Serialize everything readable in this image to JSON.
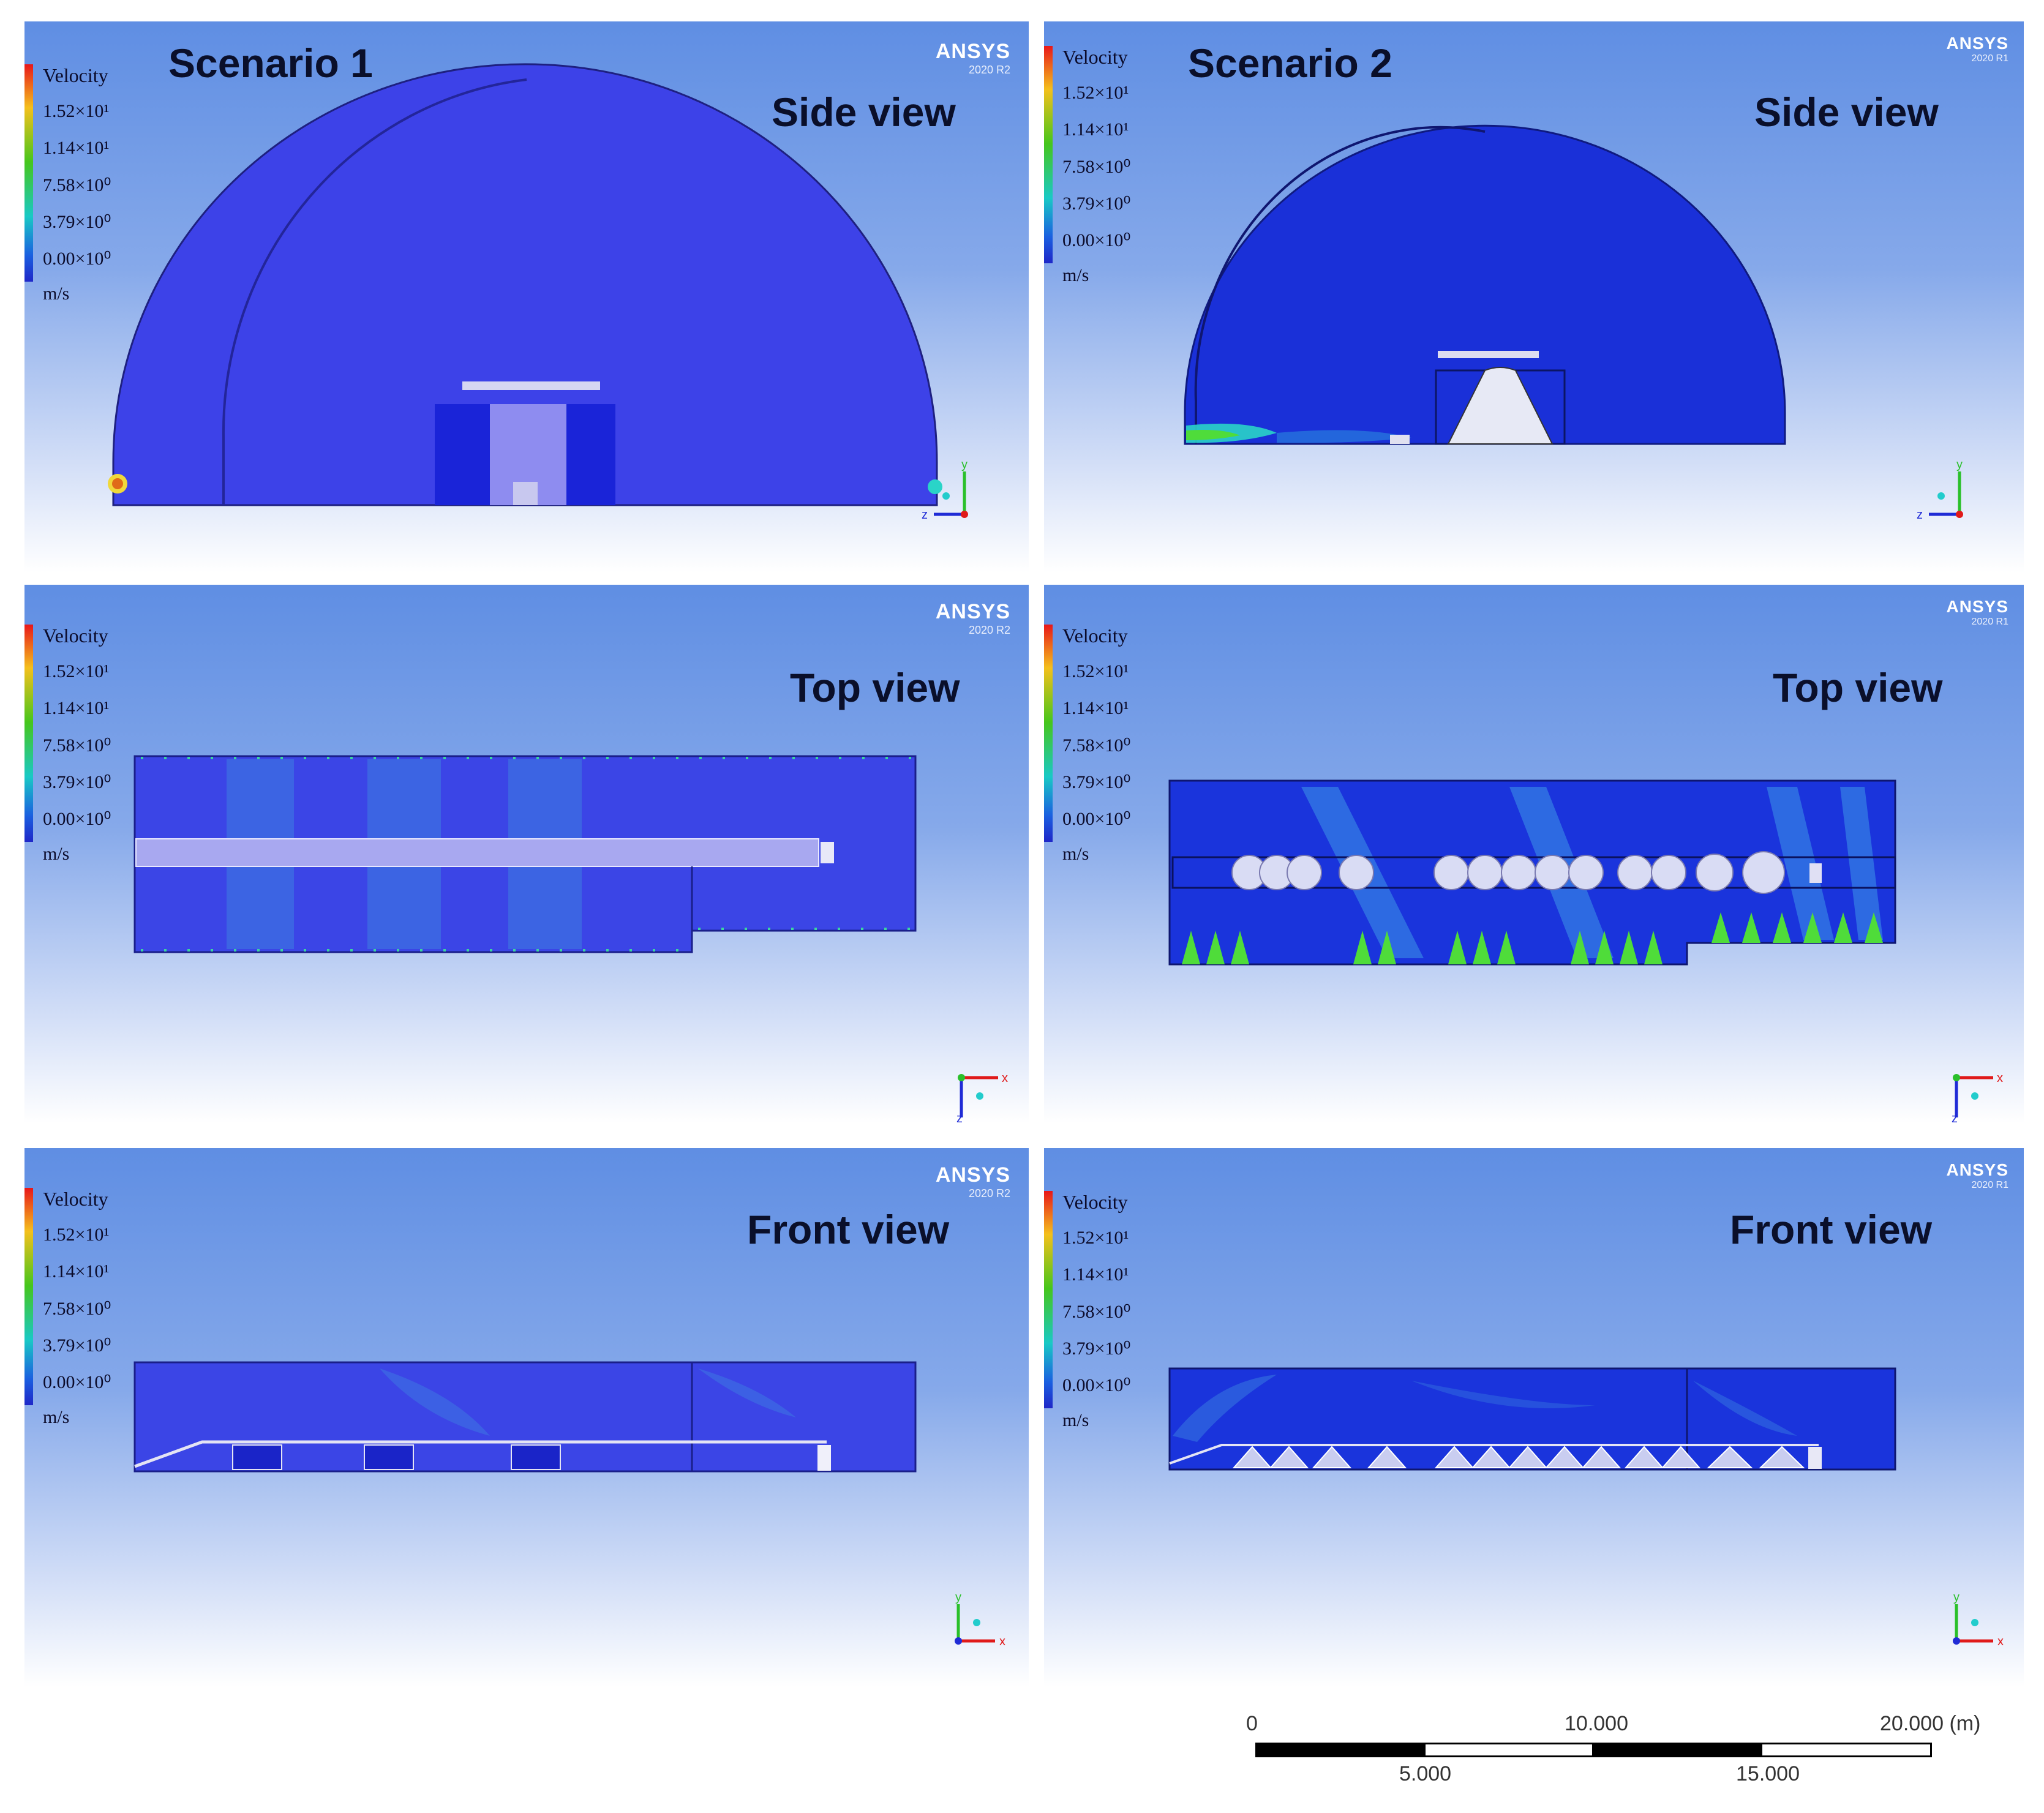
{
  "legend": {
    "title": "Velocity",
    "ticks": [
      "1.52×10¹",
      "1.14×10¹",
      "7.58×10⁰",
      "3.79×10⁰",
      "0.00×10⁰"
    ],
    "unit": "m/s"
  },
  "scenarios": [
    {
      "title": "Scenario 1",
      "software": "ANSYS",
      "version": "2020 R2"
    },
    {
      "title": "Scenario 2",
      "software": "ANSYS",
      "version": "2020 R1"
    }
  ],
  "views": [
    "Side view",
    "Top view",
    "Front view"
  ],
  "axis_labels": {
    "y": "y",
    "z": "z",
    "x": "x"
  },
  "scale_bar": {
    "top_labels": [
      "0",
      "10.000",
      "20.000 (m)"
    ],
    "bottom_labels": [
      "5.000",
      "15.000"
    ]
  },
  "colors": {
    "flow_blue": "#3a44e6",
    "jet_cyan": "#2ad4c8",
    "jet_green": "#4fdc3a"
  }
}
